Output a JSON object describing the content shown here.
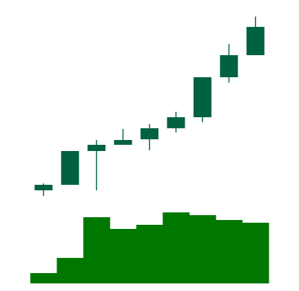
{
  "chart_data": [
    {
      "type": "candlestick",
      "color": "#006241",
      "open": [
        24,
        32,
        81,
        90,
        98,
        114,
        130,
        188,
        220
      ],
      "high": [
        34,
        81,
        97,
        113,
        120,
        138,
        188,
        236,
        276
      ],
      "low": [
        16,
        32,
        24,
        90,
        82,
        108,
        123,
        180,
        220
      ],
      "close": [
        32,
        81,
        90,
        97,
        114,
        130,
        188,
        220,
        261
      ],
      "ylim": [
        0,
        300
      ]
    },
    {
      "type": "bar",
      "color": "#007800",
      "values": [
        15,
        37,
        96,
        79,
        85,
        103,
        99,
        92,
        88
      ],
      "ylim": [
        0,
        111
      ]
    }
  ]
}
